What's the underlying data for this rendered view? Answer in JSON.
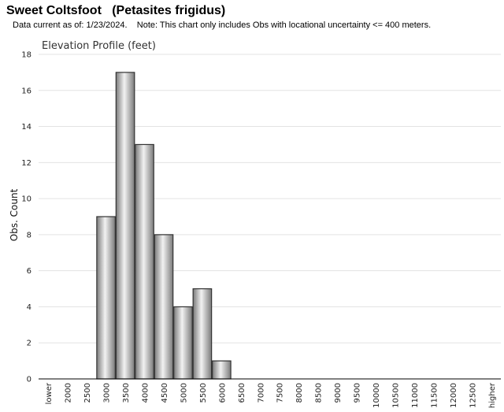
{
  "page": {
    "title": "Sweet Coltsfoot   (Petasites frigidus)",
    "subtitle": "Data current as of: 1/23/2024.    Note: This chart only includes Obs with locational uncertainty <= 400 meters."
  },
  "chart_data": {
    "type": "bar",
    "title": "Elevation Profile (feet)",
    "xlabel": "",
    "ylabel": "Obs. Count",
    "categories": [
      "lower",
      "2000",
      "2500",
      "3000",
      "3500",
      "4000",
      "4500",
      "5000",
      "5500",
      "6000",
      "6500",
      "7000",
      "7500",
      "8000",
      "8500",
      "9000",
      "9500",
      "10000",
      "10500",
      "11000",
      "11500",
      "12000",
      "12500",
      "higher"
    ],
    "values": [
      0,
      0,
      0,
      9,
      17,
      13,
      8,
      4,
      5,
      1,
      0,
      0,
      0,
      0,
      0,
      0,
      0,
      0,
      0,
      0,
      0,
      0,
      0,
      0
    ],
    "ylim": [
      0,
      18
    ],
    "yticks": [
      0,
      2,
      4,
      6,
      8,
      10,
      12,
      14,
      16,
      18
    ],
    "grid": true,
    "legend": "none",
    "colors": {
      "bar_light": "#f2f2f2",
      "bar_dark": "#7a7a7a",
      "bar_stroke": "#333333",
      "grid": "#e3e3e3"
    }
  }
}
